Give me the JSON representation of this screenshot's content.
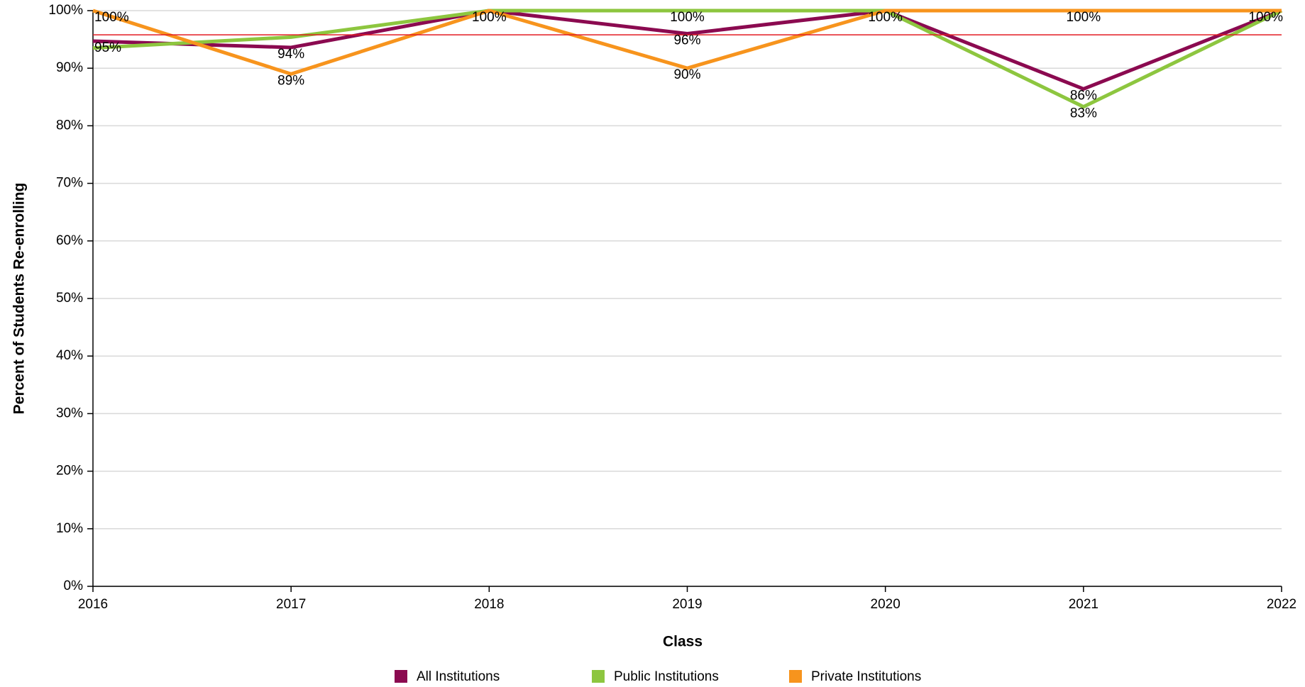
{
  "chart_data": {
    "type": "line",
    "x_label": "Class",
    "y_label": "Percent of Students Re-enrolling",
    "categories": [
      "2016",
      "2017",
      "2018",
      "2019",
      "2020",
      "2021",
      "2022"
    ],
    "series": [
      {
        "name": "All Institutions",
        "color": "#8b0a50",
        "values": [
          94.7,
          93.6,
          100,
          96,
          100,
          86.4,
          100
        ],
        "value_labels": [
          "95%",
          "94%",
          "100%",
          "96%",
          "100%",
          "86%",
          "100%"
        ]
      },
      {
        "name": "Public Institutions",
        "color": "#8dc63f",
        "values": [
          93.5,
          95.4,
          100,
          100,
          100,
          83.3,
          100
        ],
        "value_labels": [
          null,
          null,
          null,
          "100%",
          null,
          "83%",
          null
        ]
      },
      {
        "name": "Private Institutions",
        "color": "#f7941d",
        "values": [
          100,
          89,
          100,
          90,
          100,
          100,
          100
        ],
        "value_labels": [
          "100%",
          "89%",
          null,
          "90%",
          null,
          "100%",
          null
        ]
      }
    ],
    "reference_line": {
      "value": 95.8,
      "color": "#e31b23"
    },
    "ylim": [
      0,
      100
    ],
    "yticks": [
      {
        "value": 0,
        "label": "0%"
      },
      {
        "value": 10,
        "label": "10%"
      },
      {
        "value": 20,
        "label": "20%"
      },
      {
        "value": 30,
        "label": "30%"
      },
      {
        "value": 40,
        "label": "40%"
      },
      {
        "value": 50,
        "label": "50%"
      },
      {
        "value": 60,
        "label": "60%"
      },
      {
        "value": 70,
        "label": "70%"
      },
      {
        "value": 80,
        "label": "80%"
      },
      {
        "value": 90,
        "label": "90%"
      },
      {
        "value": 100,
        "label": "100%"
      }
    ],
    "grid": true,
    "legend": "bottom"
  }
}
